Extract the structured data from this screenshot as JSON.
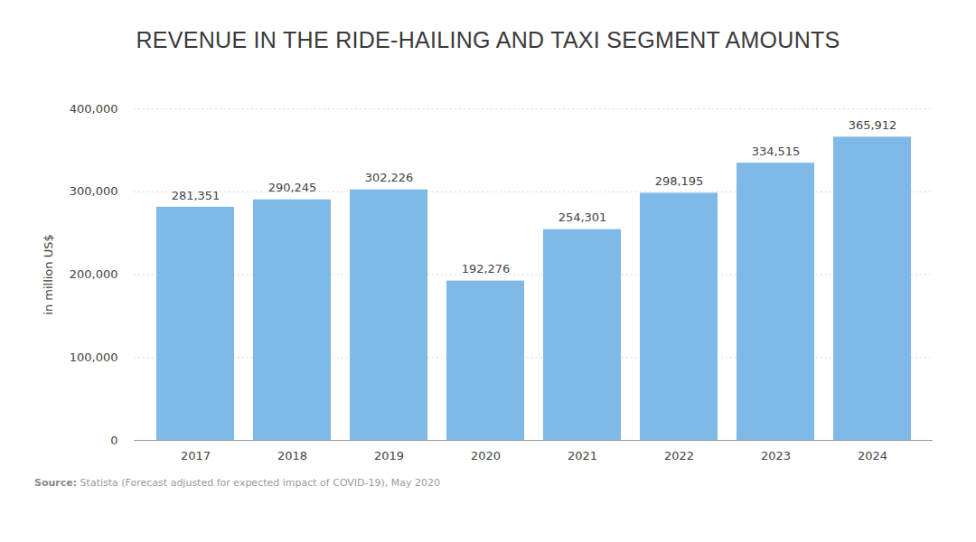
{
  "chart_data": {
    "type": "bar",
    "title": "REVENUE IN THE RIDE-HAILING AND TAXI SEGMENT AMOUNTS",
    "y_label": "in million US$",
    "source": "Source: Statista (Forecast adjusted for expected impact of COVID-19), May 2020",
    "categories": [
      "2017",
      "2018",
      "2019",
      "2020",
      "2021",
      "2022",
      "2023",
      "2024"
    ],
    "values": [
      281351,
      290245,
      302226,
      192276,
      254301,
      298195,
      334515,
      365912
    ],
    "value_labels": [
      "281,351",
      "290,245",
      "302,226",
      "192,276",
      "254,301",
      "298,195",
      "334,515",
      "365,912"
    ],
    "color": "#7eb9e8",
    "ylim": [
      0,
      400000
    ],
    "yticks": [
      0,
      {
        "value": 100000,
        "label": "100,000"
      },
      {
        "value": 200000,
        "label": "200,000"
      },
      {
        "value": 300000,
        "label": "300,000"
      },
      {
        "value": 400000,
        "label": "400,000"
      }
    ],
    "grid": true,
    "data_labels": true
  }
}
